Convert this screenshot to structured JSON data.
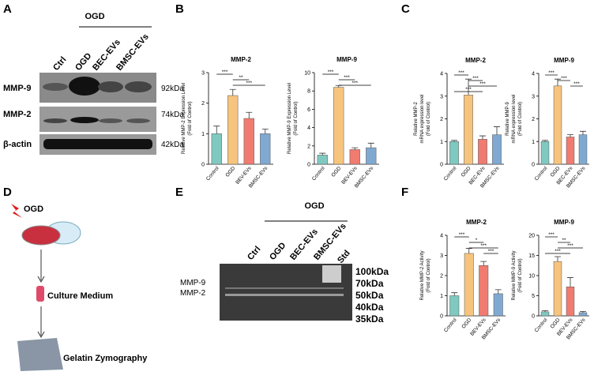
{
  "panel_labels": [
    "A",
    "B",
    "C",
    "D",
    "E",
    "F"
  ],
  "blot_a": {
    "group": "OGD",
    "lanes": [
      "Ctrl",
      "OGD",
      "BEC-EVs",
      "BMSC-EVs"
    ],
    "rows": [
      {
        "protein": "MMP-9",
        "size": "92kDa"
      },
      {
        "protein": "MMP-2",
        "size": "74kDa"
      },
      {
        "protein": "β-actin",
        "size": "42kDa"
      }
    ]
  },
  "diagram_d": {
    "steps": [
      "OGD",
      "Culture Medium",
      "Gelatin Zymography"
    ]
  },
  "gel_e": {
    "group": "OGD",
    "lanes": [
      "Ctrl",
      "OGD",
      "BEC-EVs",
      "BMSC-EVs",
      "Std"
    ],
    "bands": [
      "MMP-9",
      "MMP-2"
    ],
    "ladder": [
      "100kDa",
      "70kDa",
      "50kDa",
      "40kDa",
      "35kDa"
    ]
  },
  "chart_data": [
    {
      "type": "bar",
      "title": "MMP-2",
      "ylabel": [
        "Relative MMP-2 Expression Level",
        "(Fold of Control)"
      ],
      "categories": [
        "Control",
        "OGD",
        "BEV-EVs",
        "BMSC-EVs"
      ],
      "values": [
        1.0,
        2.25,
        1.5,
        1.0
      ],
      "errors": [
        0.25,
        0.2,
        0.2,
        0.15
      ],
      "colors": [
        "#7fc9c0",
        "#f7c47e",
        "#f07b70",
        "#80a9d2"
      ],
      "ylim": [
        0,
        3
      ],
      "yticks": [
        0,
        1,
        2,
        3
      ],
      "annotations": [
        "***",
        "**",
        "***"
      ]
    },
    {
      "type": "bar",
      "title": "MMP-9",
      "ylabel": [
        "Relative MMP-9 Expression Level",
        "(Fold of Control)"
      ],
      "categories": [
        "Control",
        "OGD",
        "BEV-EVs",
        "BMSC-EVs"
      ],
      "values": [
        1.0,
        8.4,
        1.6,
        1.8
      ],
      "errors": [
        0.2,
        0.2,
        0.2,
        0.5
      ],
      "colors": [
        "#7fc9c0",
        "#f7c47e",
        "#f07b70",
        "#80a9d2"
      ],
      "ylim": [
        0,
        10
      ],
      "yticks": [
        0,
        2,
        4,
        6,
        8,
        10
      ],
      "annotations": [
        "***",
        "***",
        "***"
      ]
    },
    {
      "type": "bar",
      "title": "MMP-2",
      "ylabel": [
        "Relative MMP-2",
        "mRNA expression level",
        "(Fold of Control)"
      ],
      "categories": [
        "Control",
        "OGD",
        "BEC-EVs",
        "BMSC-EVs"
      ],
      "values": [
        1.0,
        3.05,
        1.1,
        1.3
      ],
      "errors": [
        0.05,
        0.7,
        0.15,
        0.35
      ],
      "colors": [
        "#7fc9c0",
        "#f7c47e",
        "#f07b70",
        "#80a9d2"
      ],
      "ylim": [
        0,
        4
      ],
      "yticks": [
        0,
        1,
        2,
        3,
        4
      ],
      "annotations": [
        "***",
        "***",
        "***",
        "***"
      ]
    },
    {
      "type": "bar",
      "title": "MMP-9",
      "ylabel": [
        "Relative MMP-9",
        "mRNA expression level",
        "(Fold of Control)"
      ],
      "categories": [
        "Control",
        "OGD",
        "BEC-EVs",
        "BMSC-EVs"
      ],
      "values": [
        1.0,
        3.45,
        1.2,
        1.3
      ],
      "errors": [
        0.05,
        0.3,
        0.1,
        0.15
      ],
      "colors": [
        "#7fc9c0",
        "#f7c47e",
        "#f07b70",
        "#80a9d2"
      ],
      "ylim": [
        0,
        4
      ],
      "yticks": [
        0,
        1,
        2,
        3,
        4
      ],
      "annotations": [
        "***",
        "***",
        "***"
      ]
    },
    {
      "type": "bar",
      "title": "MMP-2",
      "ylabel": [
        "Relative MMP-2 Activity",
        "(Fold of Control)"
      ],
      "categories": [
        "Control",
        "OGD",
        "BEV-EVs",
        "BMSC-EVs"
      ],
      "values": [
        1.0,
        3.1,
        2.5,
        1.1
      ],
      "errors": [
        0.15,
        0.25,
        0.2,
        0.2
      ],
      "colors": [
        "#7fc9c0",
        "#f7c47e",
        "#f07b70",
        "#80a9d2"
      ],
      "ylim": [
        0,
        4
      ],
      "yticks": [
        0,
        1,
        2,
        3,
        4
      ],
      "annotations": [
        "***",
        "*",
        "***",
        "***"
      ]
    },
    {
      "type": "bar",
      "title": "MMP-9",
      "ylabel": [
        "Relative MMP-9 Activity",
        "(Fold of Control)"
      ],
      "categories": [
        "Control",
        "OGD",
        "BEV-EVs",
        "BMSC-EVs"
      ],
      "values": [
        1.0,
        13.5,
        7.2,
        0.8
      ],
      "errors": [
        0.3,
        1.2,
        2.3,
        0.3
      ],
      "colors": [
        "#7fc9c0",
        "#f7c47e",
        "#f07b70",
        "#80a9d2"
      ],
      "ylim": [
        0,
        20
      ],
      "yticks": [
        0,
        5,
        10,
        15,
        20
      ],
      "annotations": [
        "***",
        "**",
        "***",
        "***"
      ]
    }
  ]
}
